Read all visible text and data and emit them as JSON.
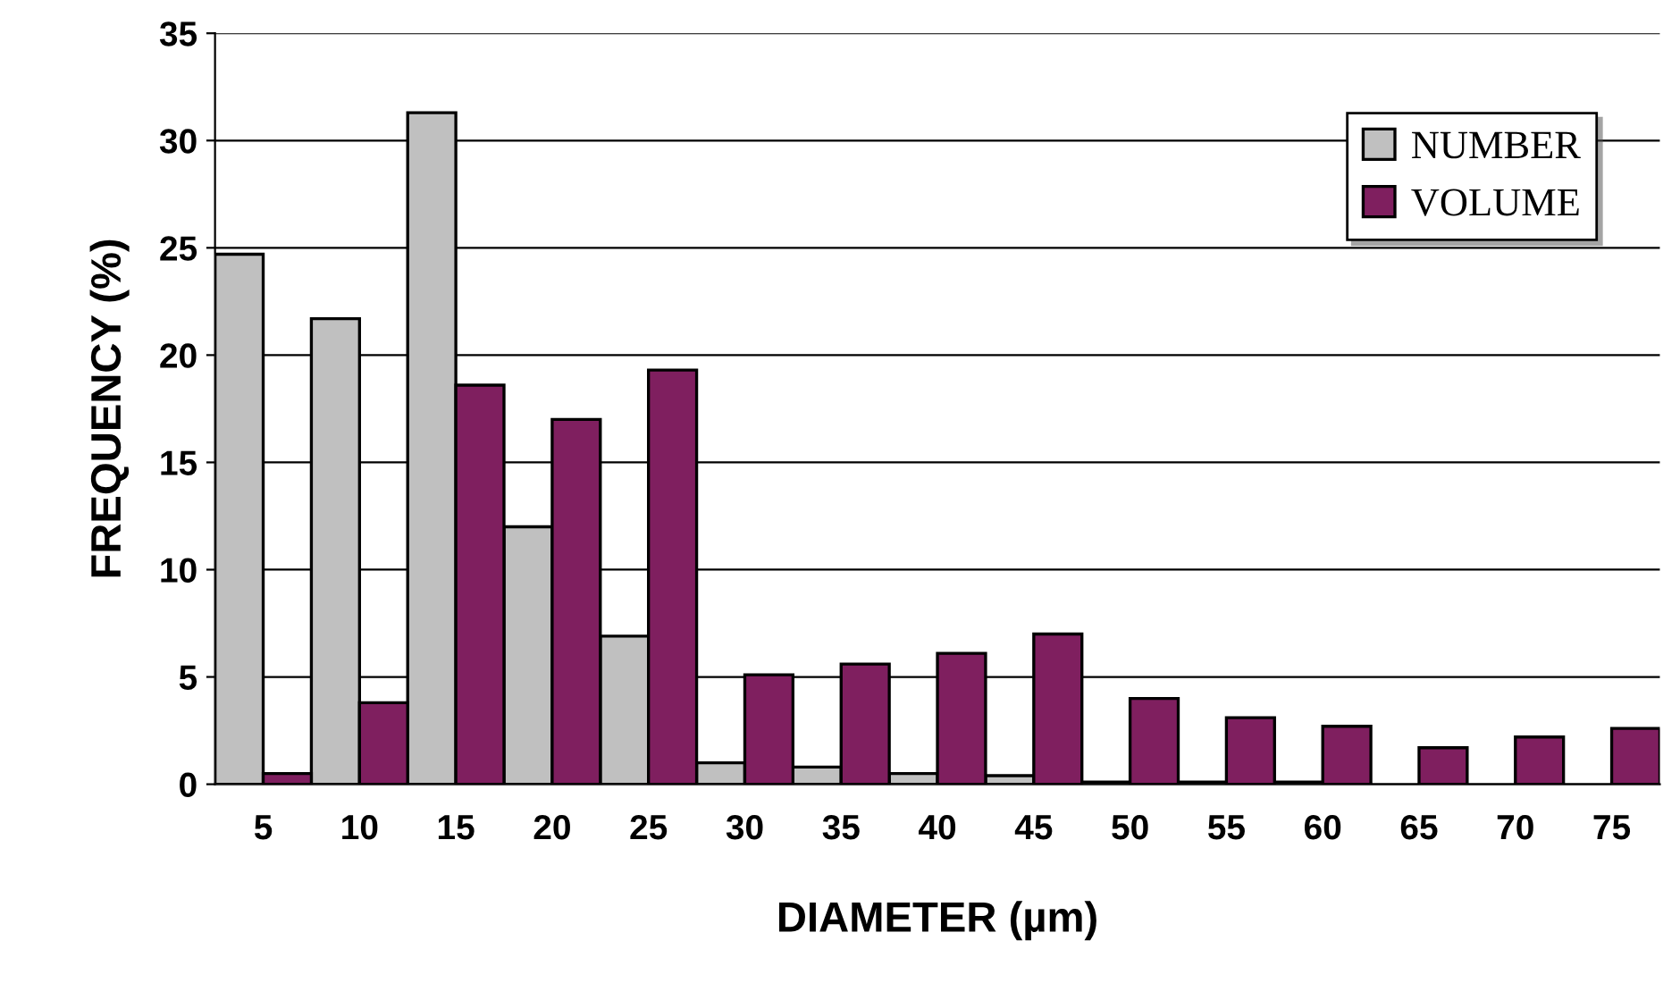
{
  "chart_data": {
    "type": "bar",
    "xlabel": "DIAMETER (µm)",
    "ylabel": "FREQUENCY (%)",
    "categories": [
      "5",
      "10",
      "15",
      "20",
      "25",
      "30",
      "35",
      "40",
      "45",
      "50",
      "55",
      "60",
      "65",
      "70",
      "75"
    ],
    "series": [
      {
        "name": "NUMBER",
        "color": "#c0c0c0",
        "values": [
          24.7,
          21.7,
          31.3,
          12.0,
          6.9,
          1.0,
          0.8,
          0.5,
          0.4,
          0.1,
          0.1,
          0.1,
          null,
          null,
          null
        ]
      },
      {
        "name": "VOLUME",
        "color": "#7f1f5f",
        "values": [
          0.5,
          3.8,
          18.6,
          17.0,
          19.3,
          5.1,
          5.6,
          6.1,
          7.0,
          4.0,
          3.1,
          2.7,
          1.7,
          2.2,
          2.6
        ]
      }
    ],
    "ylim": [
      0,
      35
    ],
    "yticks": [
      0,
      5,
      10,
      15,
      20,
      25,
      30,
      35
    ],
    "grid": "y",
    "legend": "top right"
  }
}
